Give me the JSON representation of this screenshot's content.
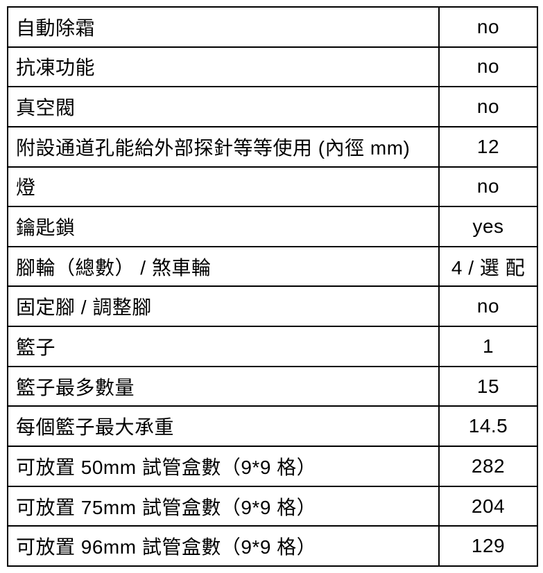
{
  "table": {
    "rows": [
      {
        "label": "自動除霜",
        "value": "no"
      },
      {
        "label": "抗凍功能",
        "value": "no"
      },
      {
        "label": "真空閥",
        "value": "no"
      },
      {
        "label": "附設通道孔能給外部探針等等使用 (內徑 mm)",
        "value": "12"
      },
      {
        "label": "燈",
        "value": "no"
      },
      {
        "label": "鑰匙鎖",
        "value": "yes"
      },
      {
        "label": "腳輪（總數） / 煞車輪",
        "value": "4 / 選 配"
      },
      {
        "label": "固定腳 / 調整腳",
        "value": "no"
      },
      {
        "label": "籃子",
        "value": "1"
      },
      {
        "label": "籃子最多數量",
        "value": "15"
      },
      {
        "label": "每個籃子最大承重",
        "value": "14.5"
      },
      {
        "label": "可放置 50mm 試管盒數（9*9 格）",
        "value": "282"
      },
      {
        "label": "可放置 75mm 試管盒數（9*9 格）",
        "value": "204"
      },
      {
        "label": "可放置 96mm 試管盒數（9*9 格）",
        "value": "129"
      }
    ],
    "colors": {
      "border": "#000000",
      "text": "#000000",
      "background": "#ffffff"
    }
  }
}
